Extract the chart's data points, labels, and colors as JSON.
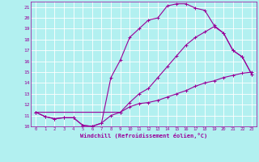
{
  "xlabel": "Windchill (Refroidissement éolien,°C)",
  "bg_color": "#b2f0f0",
  "grid_color": "#ffffff",
  "line_color": "#990099",
  "xlim": [
    -0.5,
    23.5
  ],
  "ylim": [
    10,
    21.5
  ],
  "xticks": [
    0,
    1,
    2,
    3,
    4,
    5,
    6,
    7,
    8,
    9,
    10,
    11,
    12,
    13,
    14,
    15,
    16,
    17,
    18,
    19,
    20,
    21,
    22,
    23
  ],
  "yticks": [
    10,
    11,
    12,
    13,
    14,
    15,
    16,
    17,
    18,
    19,
    20,
    21
  ],
  "line1_x": [
    0,
    1,
    2,
    3,
    4,
    5,
    6,
    7,
    8,
    9,
    10,
    11,
    12,
    13,
    14,
    15,
    16,
    17,
    18,
    19,
    20,
    21,
    22,
    23
  ],
  "line1_y": [
    11.3,
    10.9,
    10.7,
    10.8,
    10.8,
    10.1,
    10.0,
    10.3,
    11.0,
    11.3,
    11.8,
    12.1,
    12.2,
    12.4,
    12.7,
    13.0,
    13.3,
    13.7,
    14.0,
    14.2,
    14.5,
    14.7,
    14.9,
    15.0
  ],
  "line2_x": [
    0,
    1,
    2,
    3,
    4,
    5,
    6,
    7,
    8,
    9,
    10,
    11,
    12,
    13,
    14,
    15,
    16,
    17,
    18,
    19,
    20,
    21,
    22,
    23
  ],
  "line2_y": [
    11.3,
    10.9,
    10.7,
    10.8,
    10.8,
    10.1,
    10.0,
    10.3,
    14.5,
    16.1,
    18.2,
    19.0,
    19.8,
    20.0,
    21.1,
    21.3,
    21.3,
    20.9,
    20.7,
    19.3,
    18.6,
    17.0,
    16.4,
    14.8
  ],
  "line3_x": [
    0,
    9,
    10,
    11,
    12,
    13,
    14,
    15,
    16,
    17,
    18,
    19,
    20,
    21,
    22,
    23
  ],
  "line3_y": [
    11.3,
    11.3,
    12.2,
    13.0,
    13.5,
    14.5,
    15.5,
    16.5,
    17.5,
    18.2,
    18.7,
    19.2,
    18.6,
    17.0,
    16.4,
    14.8
  ]
}
